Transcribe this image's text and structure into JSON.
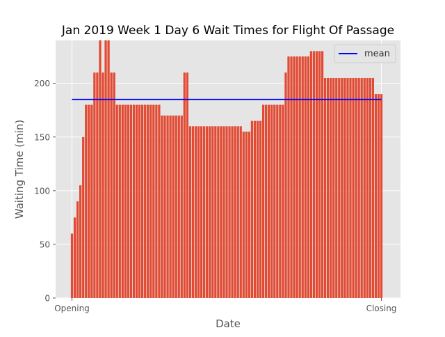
{
  "chart_data": {
    "type": "bar",
    "title": "Jan 2019 Week 1 Day 6 Wait Times for Flight Of Passage",
    "xlabel": "Date",
    "ylabel": "Waiting Time (min)",
    "xtick_labels": [
      "Opening",
      "Closing"
    ],
    "yticks": [
      0,
      50,
      100,
      150,
      200
    ],
    "ylim": [
      0,
      240
    ],
    "grid": true,
    "legend_position": "top-right",
    "colors": {
      "bar": "#e24a33",
      "mean_line": "#0000ff",
      "axes_background": "#e5e5e5",
      "grid": "#ffffff",
      "text": "#555555",
      "title": "#000000"
    },
    "series": [
      {
        "kind": "bars",
        "values": [
          60,
          75,
          90,
          105,
          150,
          180,
          180,
          180,
          210,
          210,
          240,
          210,
          240,
          240,
          210,
          210,
          180,
          180,
          180,
          180,
          180,
          180,
          180,
          180,
          180,
          180,
          180,
          180,
          180,
          180,
          180,
          180,
          170,
          170,
          170,
          170,
          170,
          170,
          170,
          170,
          210,
          210,
          160,
          160,
          160,
          160,
          160,
          160,
          160,
          160,
          160,
          160,
          160,
          160,
          160,
          160,
          160,
          160,
          160,
          160,
          160,
          155,
          155,
          155,
          165,
          165,
          165,
          165,
          180,
          180,
          180,
          180,
          180,
          180,
          180,
          180,
          210,
          225,
          225,
          225,
          225,
          225,
          225,
          225,
          225,
          230,
          230,
          230,
          230,
          230,
          205,
          205,
          205,
          205,
          205,
          205,
          205,
          205,
          205,
          205,
          205,
          205,
          205,
          205,
          205,
          205,
          205,
          205,
          190,
          190,
          190
        ]
      },
      {
        "kind": "line",
        "name": "mean",
        "value": 185
      }
    ]
  }
}
